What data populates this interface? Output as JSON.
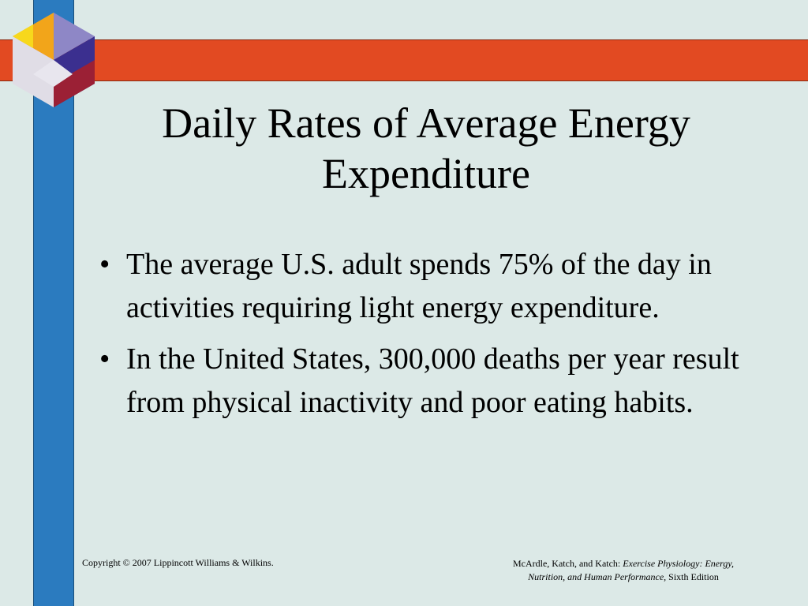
{
  "slide": {
    "title_line1": "Daily Rates of Average Energy",
    "title_line2": "Expenditure",
    "bullets": [
      "The average U.S. adult spends 75% of the day in activities requiring light energy expenditure.",
      "In the United States, 300,000 deaths per year result from physical inactivity and poor eating habits."
    ],
    "bullet_glyph": "•"
  },
  "footer": {
    "copyright": "Copyright © 2007 Lippincott Williams & Wilkins.",
    "authors": "McArdle, Katch, and Katch: ",
    "book_title_part1": "Exercise Physiology: Energy,",
    "book_title_part2": "Nutrition, and Human Performance,",
    "edition": " Sixth Edition"
  },
  "colors": {
    "background": "#dce9e7",
    "vertical_bar": "#2b7bbf",
    "horizontal_bar": "#e24a22"
  },
  "icons": {
    "logo": "cube-logo-icon"
  }
}
